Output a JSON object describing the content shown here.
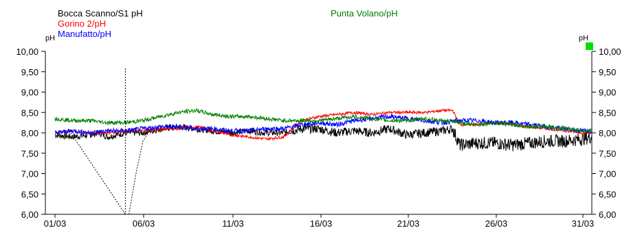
{
  "chart_data": {
    "type": "line",
    "unit_left": "pH",
    "unit_right": "pH",
    "ylim": [
      6.0,
      10.0
    ],
    "yticks": [
      "6,00",
      "6,50",
      "7,00",
      "7,50",
      "8,00",
      "8,50",
      "9,00",
      "9,50",
      "10,00"
    ],
    "x": [
      "01/03",
      "06/03",
      "11/03",
      "16/03",
      "21/03",
      "26/03",
      "31/03"
    ],
    "xlim_days": [
      1,
      31.5
    ],
    "grid": false,
    "series": [
      {
        "name": "Bocca Scanno/S1 pH",
        "color": "#000000",
        "x": [
          1.0,
          2.0,
          3.0,
          3.5,
          4.0,
          5.0,
          6.0,
          7.0,
          8.0,
          9.0,
          10.0,
          11.0,
          12.0,
          13.0,
          14.0,
          15.0,
          16.0,
          17.0,
          18.0,
          19.0,
          20.0,
          21.0,
          22.0,
          23.0,
          23.6,
          24.0,
          25.0,
          26.0,
          27.0,
          28.0,
          29.0,
          30.0,
          31.0,
          31.5
        ],
        "values": [
          7.95,
          7.9,
          7.95,
          8.0,
          7.9,
          8.0,
          8.0,
          8.1,
          8.15,
          8.1,
          8.05,
          8.0,
          8.05,
          8.0,
          8.0,
          8.1,
          8.1,
          8.0,
          8.05,
          8.0,
          8.1,
          7.95,
          8.0,
          8.05,
          8.1,
          7.7,
          7.75,
          7.75,
          7.7,
          7.75,
          7.8,
          7.8,
          7.85,
          7.9
        ]
      },
      {
        "name": "Gorino 2/pH",
        "color": "#ff0000",
        "x": [
          1.0,
          2.0,
          3.0,
          4.0,
          5.0,
          6.0,
          7.0,
          8.0,
          9.0,
          10.0,
          11.0,
          12.0,
          13.0,
          14.0,
          15.0,
          16.0,
          17.0,
          18.0,
          19.0,
          20.0,
          21.0,
          22.0,
          23.0,
          23.6,
          24.0,
          25.0,
          26.0,
          27.0,
          28.0,
          29.0,
          30.0,
          31.0,
          31.5
        ],
        "values": [
          8.0,
          8.05,
          8.0,
          8.0,
          8.05,
          8.05,
          8.1,
          8.1,
          8.15,
          8.05,
          7.95,
          7.9,
          7.85,
          7.9,
          8.3,
          8.4,
          8.45,
          8.5,
          8.45,
          8.5,
          8.5,
          8.5,
          8.55,
          8.55,
          8.2,
          8.2,
          8.25,
          8.2,
          8.15,
          8.1,
          8.05,
          8.0,
          8.0
        ]
      },
      {
        "name": "Manufatto/pH",
        "color": "#0000ff",
        "x": [
          1.0,
          2.0,
          3.0,
          4.0,
          5.0,
          6.0,
          7.0,
          8.0,
          9.0,
          10.0,
          11.0,
          12.0,
          13.0,
          14.0,
          15.0,
          16.0,
          17.0,
          18.0,
          19.0,
          20.0,
          21.0,
          22.0,
          23.0,
          24.0,
          25.0,
          26.0,
          27.0,
          28.0,
          29.0,
          30.0,
          31.0,
          31.5
        ],
        "values": [
          8.0,
          8.05,
          8.0,
          8.05,
          8.05,
          8.1,
          8.15,
          8.15,
          8.1,
          8.1,
          8.05,
          8.05,
          8.1,
          8.1,
          8.2,
          8.25,
          8.2,
          8.3,
          8.35,
          8.4,
          8.35,
          8.3,
          8.25,
          8.3,
          8.3,
          8.25,
          8.25,
          8.2,
          8.15,
          8.1,
          8.05,
          8.05
        ]
      },
      {
        "name": "Punta Volano/pH",
        "color": "#008000",
        "x": [
          1.0,
          2.0,
          3.0,
          4.0,
          5.0,
          6.0,
          7.0,
          8.0,
          9.0,
          10.0,
          11.0,
          12.0,
          13.0,
          14.0,
          15.0,
          16.0,
          17.0,
          18.0,
          19.0,
          20.0,
          21.0,
          22.0,
          23.0,
          24.0,
          25.0,
          26.0,
          27.0,
          28.0,
          29.0,
          30.0,
          31.0,
          31.5
        ],
        "values": [
          8.35,
          8.3,
          8.3,
          8.25,
          8.25,
          8.3,
          8.4,
          8.5,
          8.55,
          8.45,
          8.4,
          8.4,
          8.35,
          8.3,
          8.3,
          8.3,
          8.35,
          8.4,
          8.35,
          8.3,
          8.3,
          8.35,
          8.3,
          8.25,
          8.2,
          8.25,
          8.2,
          8.15,
          8.15,
          8.1,
          8.05,
          8.05
        ]
      }
    ],
    "annotations": [
      {
        "type": "dotted-spike",
        "color": "#000000",
        "x": [
          1.9,
          5.0,
          5.2,
          5.6,
          6.0,
          6.3
        ],
        "values": [
          8.0,
          6.0,
          6.0,
          7.0,
          7.8,
          8.0
        ]
      },
      {
        "type": "dotted-vline",
        "color": "#000000",
        "x_day": 5.0
      }
    ]
  }
}
